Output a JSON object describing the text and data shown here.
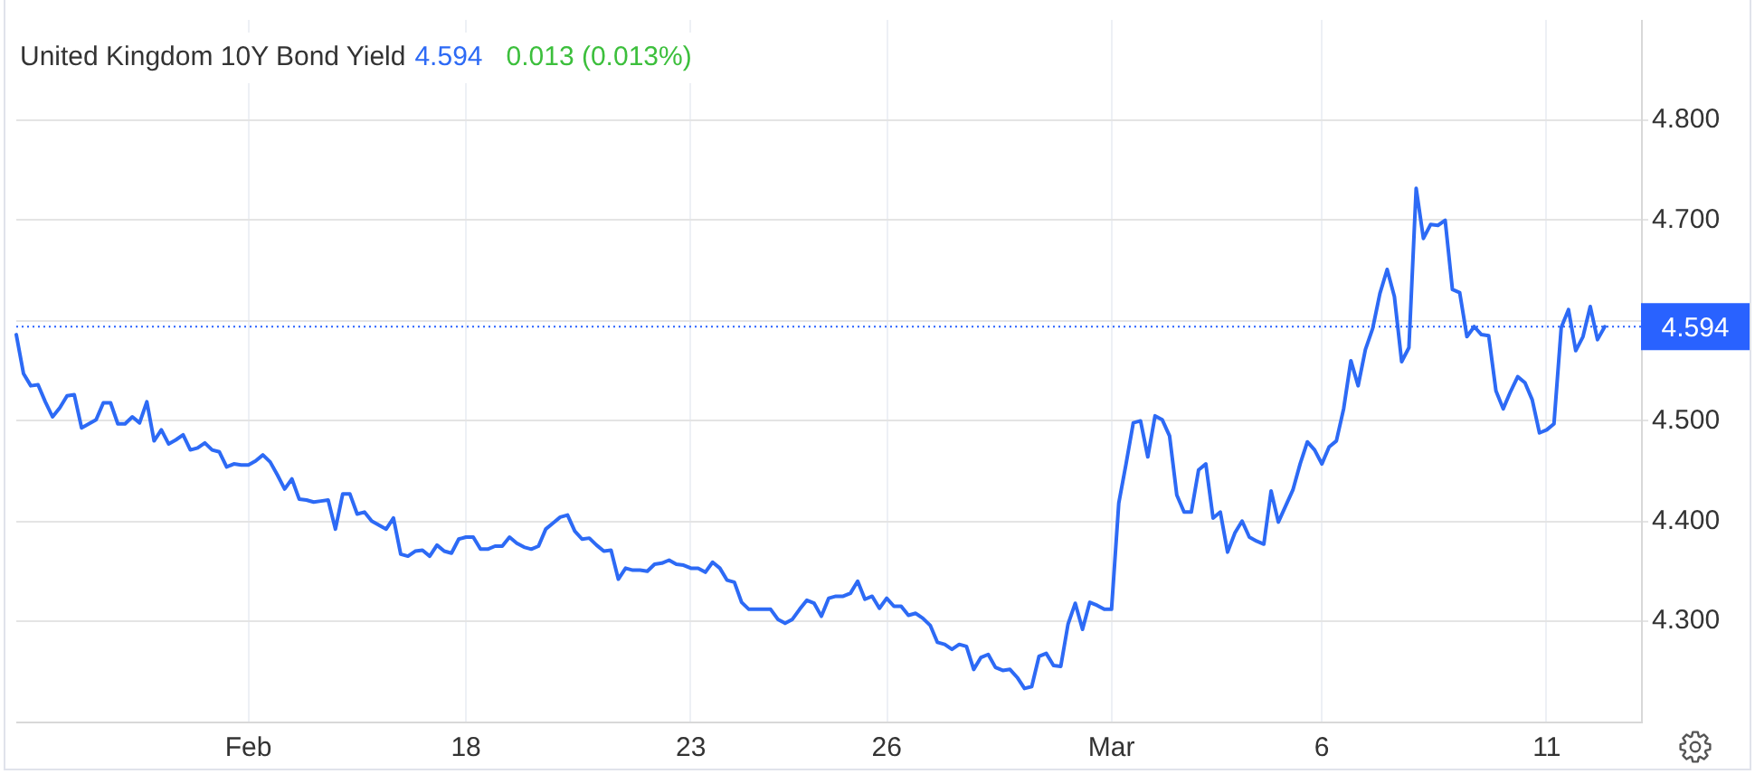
{
  "chart_data": {
    "type": "line",
    "title": "United Kingdom 10Y Bond Yield",
    "annotations": [
      "4.594",
      "0.013 (0.013%)"
    ],
    "categories": [
      null,
      null,
      null,
      null,
      null,
      null,
      null,
      null,
      null,
      null,
      null,
      null,
      null,
      null,
      null,
      null,
      null,
      null,
      null,
      null,
      null,
      null,
      null,
      null,
      null,
      null,
      null,
      null,
      null,
      null,
      null,
      null,
      "Feb",
      null,
      null,
      null,
      null,
      null,
      null,
      null,
      null,
      null,
      null,
      null,
      null,
      null,
      null,
      null,
      null,
      null,
      null,
      null,
      null,
      null,
      null,
      null,
      null,
      null,
      null,
      null,
      null,
      null,
      "18",
      null,
      null,
      null,
      null,
      null,
      null,
      null,
      null,
      null,
      null,
      null,
      null,
      null,
      null,
      null,
      null,
      null,
      null,
      null,
      null,
      null,
      null,
      null,
      null,
      null,
      null,
      null,
      null,
      null,
      null,
      "23",
      null,
      null,
      null,
      null,
      null,
      null,
      null,
      null,
      null,
      null,
      null,
      null,
      null,
      null,
      null,
      null,
      null,
      null,
      null,
      null,
      null,
      null,
      null,
      null,
      null,
      null,
      "26",
      null,
      null,
      null,
      null,
      null,
      null,
      null,
      null,
      null,
      null,
      null,
      null,
      null,
      null,
      null,
      null,
      null,
      null,
      null,
      null,
      null,
      null,
      null,
      null,
      null,
      null,
      null,
      null,
      null,
      null,
      "Mar",
      null,
      null,
      null,
      null,
      null,
      null,
      null,
      null,
      null,
      null,
      null,
      null,
      null,
      null,
      null,
      null,
      null,
      null,
      null,
      null,
      null,
      null,
      null,
      null,
      null,
      null,
      null,
      null,
      "6",
      null,
      null,
      null,
      null,
      null,
      null,
      null,
      null,
      null,
      null,
      null,
      null,
      null,
      null,
      null,
      null,
      null,
      null,
      null,
      null,
      null,
      null,
      null,
      null,
      null,
      null,
      null,
      null,
      null,
      null,
      "11",
      null,
      null,
      null,
      null,
      null,
      null,
      null,
      null,
      null,
      null,
      null,
      null,
      null
    ],
    "series": [
      {
        "color": "#2d6af5",
        "values": [
          4.586,
          4.547,
          4.535,
          4.536,
          4.519,
          4.504,
          4.513,
          4.525,
          4.526,
          4.493,
          4.497,
          4.501,
          4.518,
          4.518,
          4.497,
          4.497,
          4.504,
          4.498,
          4.519,
          4.48,
          4.491,
          4.477,
          4.481,
          4.486,
          4.471,
          4.473,
          4.478,
          4.471,
          4.469,
          4.454,
          4.457,
          4.456,
          4.456,
          4.46,
          4.466,
          4.459,
          4.446,
          4.432,
          4.442,
          4.422,
          4.421,
          4.419,
          4.42,
          4.421,
          4.392,
          4.427,
          4.427,
          4.407,
          4.409,
          4.4,
          4.396,
          4.392,
          4.403,
          4.367,
          4.365,
          4.37,
          4.371,
          4.365,
          4.376,
          4.37,
          4.368,
          4.382,
          4.384,
          4.384,
          4.372,
          4.372,
          4.375,
          4.375,
          4.384,
          4.378,
          4.374,
          4.372,
          4.375,
          4.392,
          4.398,
          4.404,
          4.406,
          4.39,
          4.382,
          4.383,
          4.376,
          4.37,
          4.371,
          4.342,
          4.353,
          4.351,
          4.351,
          4.35,
          4.357,
          4.358,
          4.361,
          4.357,
          4.356,
          4.353,
          4.353,
          4.349,
          4.359,
          4.353,
          4.341,
          4.339,
          4.319,
          4.312,
          4.312,
          4.312,
          4.312,
          4.302,
          4.298,
          4.302,
          4.312,
          4.321,
          4.318,
          4.305,
          4.323,
          4.325,
          4.325,
          4.328,
          4.34,
          4.322,
          4.325,
          4.313,
          4.323,
          4.315,
          4.315,
          4.306,
          4.308,
          4.303,
          4.296,
          4.279,
          4.277,
          4.272,
          4.277,
          4.275,
          4.252,
          4.264,
          4.267,
          4.254,
          4.251,
          4.252,
          4.244,
          4.233,
          4.235,
          4.265,
          4.268,
          4.256,
          4.255,
          4.297,
          4.318,
          4.292,
          4.319,
          4.316,
          4.312,
          4.312,
          4.418,
          4.457,
          4.498,
          4.5,
          4.464,
          4.505,
          4.501,
          4.485,
          4.426,
          4.409,
          4.409,
          4.451,
          4.457,
          4.403,
          4.409,
          4.369,
          4.388,
          4.4,
          4.384,
          4.38,
          4.377,
          4.43,
          4.399,
          4.415,
          4.431,
          4.457,
          4.479,
          4.471,
          4.457,
          4.474,
          4.48,
          4.512,
          4.56,
          4.535,
          4.571,
          4.592,
          4.627,
          4.651,
          4.624,
          4.559,
          4.573,
          4.732,
          4.682,
          4.696,
          4.695,
          4.7,
          4.631,
          4.628,
          4.584,
          4.594,
          4.586,
          4.585,
          4.53,
          4.512,
          4.529,
          4.544,
          4.538,
          4.521,
          4.488,
          4.491,
          4.497,
          4.593,
          4.611,
          4.57,
          4.584,
          4.614,
          4.581,
          4.594,
          null,
          null,
          null,
          null,
          null
        ]
      }
    ],
    "ylim": [
      4.2,
      4.9
    ],
    "yticks": [
      {
        "value": 4.3,
        "label": "4.300"
      },
      {
        "value": 4.4,
        "label": "4.400"
      },
      {
        "value": 4.5,
        "label": "4.500"
      },
      {
        "value": 4.6,
        "label": null
      },
      {
        "value": 4.7,
        "label": "4.700"
      },
      {
        "value": 4.8,
        "label": "4.800"
      }
    ],
    "grid": true,
    "marker": "none",
    "ref_lines": [
      {
        "axis": "y",
        "value": 4.594,
        "label": "4.594",
        "color": "#2962ff",
        "line_style": "dotted"
      }
    ]
  }
}
